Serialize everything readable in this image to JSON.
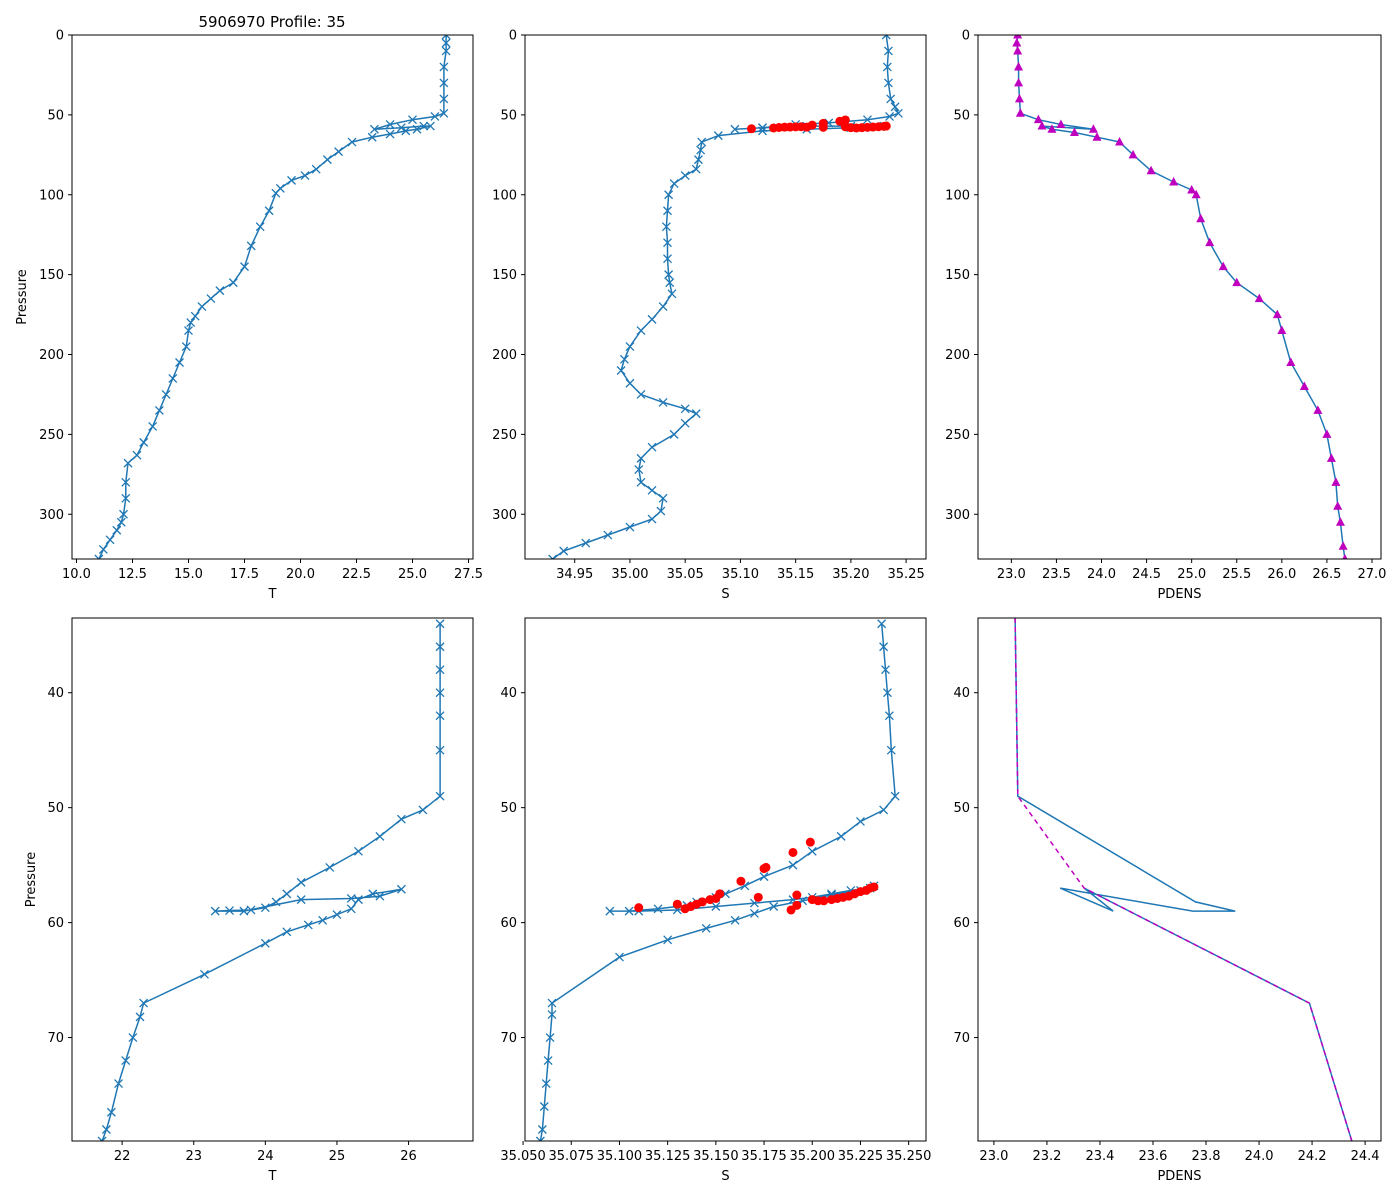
{
  "figure_title": "5906970 Profile: 35",
  "colors": {
    "line": "#1f77b4",
    "flag": "#ff0000",
    "density": "#bf00bf"
  },
  "chart_data": [
    {
      "type": "line",
      "id": "top-temperature",
      "title": "5906970 Profile: 35",
      "xlabel": "T",
      "ylabel": "Pressure",
      "xlim": [
        9.8,
        27.7
      ],
      "ylim": [
        328,
        0
      ],
      "xticks": [
        10.0,
        12.5,
        15.0,
        17.5,
        20.0,
        22.5,
        25.0,
        27.5
      ],
      "xtick_labels": [
        "10.0",
        "12.5",
        "15.0",
        "17.5",
        "20.0",
        "22.5",
        "25.0",
        "27.5"
      ],
      "yticks": [
        0,
        50,
        100,
        150,
        200,
        250,
        300
      ],
      "ytick_labels": [
        "0",
        "50",
        "100",
        "150",
        "200",
        "250",
        "300"
      ],
      "series": [
        {
          "name": "T",
          "marker": "x",
          "x": [
            26.5,
            26.5,
            26.5,
            26.4,
            26.4,
            26.4,
            26.4,
            26.0,
            25.0,
            24.0,
            23.3,
            24.5,
            25.5,
            25.8,
            25.2,
            24.7,
            24.0,
            23.2,
            22.3,
            21.7,
            21.2,
            20.7,
            20.2,
            19.6,
            19.1,
            18.9,
            18.6,
            18.2,
            17.8,
            17.5,
            17.0,
            16.4,
            16.0,
            15.6,
            15.3,
            15.1,
            15.0,
            14.9,
            14.6,
            14.3,
            14.0,
            13.7,
            13.4,
            13.0,
            12.7,
            12.3,
            12.2,
            12.2,
            12.1,
            12.0,
            11.8,
            11.5,
            11.2,
            11.0
          ],
          "y": [
            0,
            5,
            10,
            20,
            30,
            40,
            49,
            51,
            53,
            56,
            59,
            58,
            57,
            57,
            59,
            60,
            62,
            64,
            67,
            73,
            78,
            84,
            88,
            91,
            96,
            99,
            110,
            120,
            132,
            145,
            155,
            160,
            165,
            170,
            176,
            180,
            185,
            195,
            205,
            215,
            225,
            235,
            245,
            255,
            263,
            268,
            280,
            290,
            300,
            305,
            310,
            316,
            322,
            328
          ]
        }
      ],
      "flags": []
    },
    {
      "type": "line",
      "id": "top-salinity",
      "xlabel": "S",
      "ylabel": "",
      "xlim": [
        34.905,
        35.268
      ],
      "ylim": [
        328,
        0
      ],
      "xticks": [
        34.95,
        35.0,
        35.05,
        35.1,
        35.15,
        35.2,
        35.25
      ],
      "xtick_labels": [
        "34.95",
        "35.00",
        "35.05",
        "35.10",
        "35.15",
        "35.20",
        "35.25"
      ],
      "yticks": [
        0,
        50,
        100,
        150,
        200,
        250,
        300
      ],
      "ytick_labels": [
        "0",
        "50",
        "100",
        "150",
        "200",
        "250",
        "300"
      ],
      "series": [
        {
          "name": "S",
          "marker": "x",
          "x": [
            35.232,
            35.234,
            35.233,
            35.234,
            35.236,
            35.24,
            35.243,
            35.235,
            35.215,
            35.18,
            35.15,
            35.12,
            35.095,
            35.12,
            35.16,
            35.2,
            35.23,
            35.2,
            35.16,
            35.12,
            35.08,
            35.065,
            35.064,
            35.062,
            35.06,
            35.05,
            35.04,
            35.035,
            35.034,
            35.033,
            35.034,
            35.034,
            35.035,
            35.036,
            35.038,
            35.03,
            35.02,
            35.01,
            35.0,
            34.995,
            34.992,
            35.0,
            35.01,
            35.03,
            35.05,
            35.06,
            35.05,
            35.04,
            35.02,
            35.01,
            35.008,
            35.01,
            35.02,
            35.03,
            35.028,
            35.02,
            35.0,
            34.98,
            34.96,
            34.94,
            34.93
          ],
          "y": [
            0,
            10,
            20,
            30,
            40,
            45,
            49,
            51,
            53,
            55,
            56,
            58,
            59,
            58,
            57,
            57,
            57,
            58,
            59,
            60,
            63,
            67,
            72,
            78,
            84,
            88,
            93,
            100,
            110,
            120,
            130,
            140,
            150,
            155,
            162,
            170,
            178,
            185,
            195,
            203,
            210,
            218,
            225,
            230,
            234,
            237,
            243,
            250,
            258,
            265,
            272,
            280,
            285,
            290,
            298,
            303,
            308,
            313,
            318,
            323,
            328
          ]
        }
      ],
      "flags": [
        {
          "name": "flagged",
          "marker": "o",
          "x": [
            35.11,
            35.13,
            35.135,
            35.14,
            35.145,
            35.15,
            35.155,
            35.16,
            35.165,
            35.175,
            35.19,
            35.195,
            35.2,
            35.205,
            35.21,
            35.215,
            35.22,
            35.225,
            35.23,
            35.232,
            35.175,
            35.195
          ],
          "y": [
            58.7,
            58.2,
            57.9,
            57.7,
            57.6,
            57.5,
            57.4,
            57.7,
            56.4,
            55.3,
            54,
            53.2,
            58,
            58.2,
            58,
            57.8,
            57.6,
            57.4,
            57.2,
            57,
            57.8,
            57.5
          ]
        }
      ]
    },
    {
      "type": "line",
      "id": "top-density",
      "xlabel": "PDENS",
      "ylabel": "",
      "xlim": [
        22.63,
        27.1
      ],
      "ylim": [
        328,
        0
      ],
      "xticks": [
        23.0,
        23.5,
        24.0,
        24.5,
        25.0,
        25.5,
        26.0,
        26.5,
        27.0
      ],
      "xtick_labels": [
        "23.0",
        "23.5",
        "24.0",
        "24.5",
        "25.0",
        "25.5",
        "26.0",
        "26.5",
        "27.0"
      ],
      "yticks": [
        0,
        50,
        100,
        150,
        200,
        250,
        300
      ],
      "ytick_labels": [
        "0",
        "50",
        "100",
        "150",
        "200",
        "250",
        "300"
      ],
      "series": [
        {
          "name": "PDENS",
          "marker": "^",
          "x": [
            23.07,
            23.06,
            23.07,
            23.08,
            23.08,
            23.09,
            23.1,
            23.3,
            23.55,
            23.91,
            23.34,
            23.45,
            23.7,
            23.95,
            24.2,
            24.35,
            24.55,
            24.8,
            25.0,
            25.05,
            25.1,
            25.2,
            25.35,
            25.5,
            25.75,
            25.95,
            26.0,
            26.1,
            26.25,
            26.4,
            26.5,
            26.55,
            26.6,
            26.62,
            26.65,
            26.68,
            26.7
          ],
          "y": [
            0,
            5,
            10,
            20,
            30,
            40,
            49,
            53,
            56,
            59,
            57,
            59,
            61,
            64,
            67,
            75,
            85,
            92,
            97,
            100,
            115,
            130,
            145,
            155,
            165,
            175,
            185,
            205,
            220,
            235,
            250,
            265,
            280,
            295,
            305,
            320,
            328
          ]
        }
      ],
      "flags": []
    },
    {
      "type": "line",
      "id": "bottom-temperature",
      "xlabel": "T",
      "ylabel": "Pressure",
      "xlim": [
        21.3,
        26.9
      ],
      "ylim": [
        79,
        33.5
      ],
      "xticks": [
        22,
        23,
        24,
        25,
        26
      ],
      "xtick_labels": [
        "22",
        "23",
        "24",
        "25",
        "26"
      ],
      "yticks": [
        40,
        50,
        60,
        70
      ],
      "ytick_labels": [
        "40",
        "50",
        "60",
        "70"
      ],
      "series": [
        {
          "name": "T",
          "marker": "x",
          "x": [
            26.44,
            26.44,
            26.44,
            26.44,
            26.44,
            26.44,
            26.44,
            26.2,
            25.9,
            25.6,
            25.3,
            24.9,
            24.5,
            24.3,
            24.15,
            24.0,
            23.8,
            23.5,
            23.3,
            23.7,
            24.5,
            25.2,
            25.6,
            25.9,
            25.5,
            25.3,
            25.2,
            25.0,
            24.8,
            24.6,
            24.3,
            24.0,
            23.15,
            22.3,
            22.25,
            22.15,
            22.05,
            21.95,
            21.85,
            21.78,
            21.72
          ],
          "y": [
            34,
            36,
            38,
            40,
            42,
            45,
            49,
            50.2,
            51,
            52.5,
            53.8,
            55.2,
            56.5,
            57.5,
            58.2,
            58.7,
            58.9,
            58.95,
            59,
            59,
            58,
            57.9,
            57.7,
            57.1,
            57.5,
            58,
            58.8,
            59.3,
            59.8,
            60.2,
            60.8,
            61.8,
            64.5,
            67,
            68.2,
            70,
            72,
            74,
            76.5,
            78,
            79
          ]
        }
      ],
      "flags": []
    },
    {
      "type": "line",
      "id": "bottom-salinity",
      "xlabel": "S",
      "ylabel": "",
      "xlim": [
        35.051,
        35.259
      ],
      "ylim": [
        79,
        33.5
      ],
      "xticks": [
        35.05,
        35.075,
        35.1,
        35.125,
        35.15,
        35.175,
        35.2,
        35.225,
        35.25
      ],
      "xtick_labels": [
        "35.050",
        "35.075",
        "35.100",
        "35.125",
        "35.150",
        "35.175",
        "35.200",
        "35.225",
        "35.250"
      ],
      "yticks": [
        40,
        50,
        60,
        70
      ],
      "ytick_labels": [
        "40",
        "50",
        "60",
        "70"
      ],
      "series": [
        {
          "name": "S",
          "marker": "x",
          "x": [
            35.236,
            35.237,
            35.238,
            35.239,
            35.24,
            35.241,
            35.243,
            35.237,
            35.225,
            35.215,
            35.2,
            35.19,
            35.175,
            35.165,
            35.155,
            35.15,
            35.14,
            35.135,
            35.12,
            35.105,
            35.095,
            35.11,
            35.13,
            35.15,
            35.17,
            35.19,
            35.2,
            35.21,
            35.22,
            35.23,
            35.232,
            35.225,
            35.21,
            35.195,
            35.18,
            35.17,
            35.16,
            35.145,
            35.125,
            35.1,
            35.065,
            35.065,
            35.064,
            35.063,
            35.062,
            35.061,
            35.06,
            35.059
          ],
          "y": [
            34,
            36,
            38,
            40,
            42,
            45,
            49,
            50.2,
            51.2,
            52.5,
            53.8,
            55,
            56,
            56.8,
            57.5,
            57.8,
            58.2,
            58.5,
            58.8,
            59,
            59,
            59,
            58.9,
            58.6,
            58.3,
            58,
            57.8,
            57.5,
            57.2,
            57,
            56.8,
            57.2,
            57.6,
            58.1,
            58.6,
            59.2,
            59.8,
            60.5,
            61.5,
            63,
            67,
            68,
            70,
            72,
            74,
            76,
            78,
            79
          ]
        }
      ],
      "flags": [
        {
          "name": "flagged",
          "marker": "o",
          "x": [
            35.11,
            35.13,
            35.134,
            35.137,
            35.14,
            35.143,
            35.147,
            35.15,
            35.152,
            35.163,
            35.175,
            35.176,
            35.19,
            35.199,
            35.172,
            35.192,
            35.192,
            35.189,
            35.2,
            35.203,
            35.206,
            35.21,
            35.213,
            35.216,
            35.219,
            35.222,
            35.225,
            35.228,
            35.23,
            35.232
          ],
          "y": [
            58.7,
            58.4,
            58.8,
            58.6,
            58.4,
            58.2,
            58.0,
            57.9,
            57.5,
            56.4,
            55.3,
            55.2,
            53.9,
            53.0,
            57.8,
            57.6,
            58.5,
            58.9,
            58.0,
            58.1,
            58.1,
            58.0,
            57.9,
            57.8,
            57.7,
            57.5,
            57.3,
            57.2,
            57.0,
            56.9
          ]
        }
      ]
    },
    {
      "type": "line",
      "id": "bottom-density",
      "xlabel": "PDENS",
      "ylabel": "",
      "xlim": [
        22.94,
        24.46
      ],
      "ylim": [
        79,
        33.5
      ],
      "xticks": [
        23.0,
        23.2,
        23.4,
        23.6,
        23.8,
        24.0,
        24.2,
        24.4
      ],
      "xtick_labels": [
        "23.0",
        "23.2",
        "23.4",
        "23.6",
        "23.8",
        "24.0",
        "24.2",
        "24.4"
      ],
      "yticks": [
        40,
        50,
        60,
        70
      ],
      "ytick_labels": [
        "40",
        "50",
        "60",
        "70"
      ],
      "series": [
        {
          "name": "PDENS",
          "marker": "none",
          "x": [
            23.08,
            23.09,
            23.76,
            23.91,
            23.75,
            23.25,
            23.45,
            23.34,
            24.19,
            24.35
          ],
          "y": [
            33.5,
            49,
            58.2,
            59,
            59,
            57,
            59,
            57,
            67,
            79
          ]
        },
        {
          "name": "PDENS-dashed",
          "marker": "none",
          "dashed": true,
          "x": [
            23.08,
            23.09,
            23.34,
            24.19,
            24.35
          ],
          "y": [
            33.5,
            49,
            57,
            67,
            79
          ]
        }
      ],
      "flags": []
    }
  ]
}
